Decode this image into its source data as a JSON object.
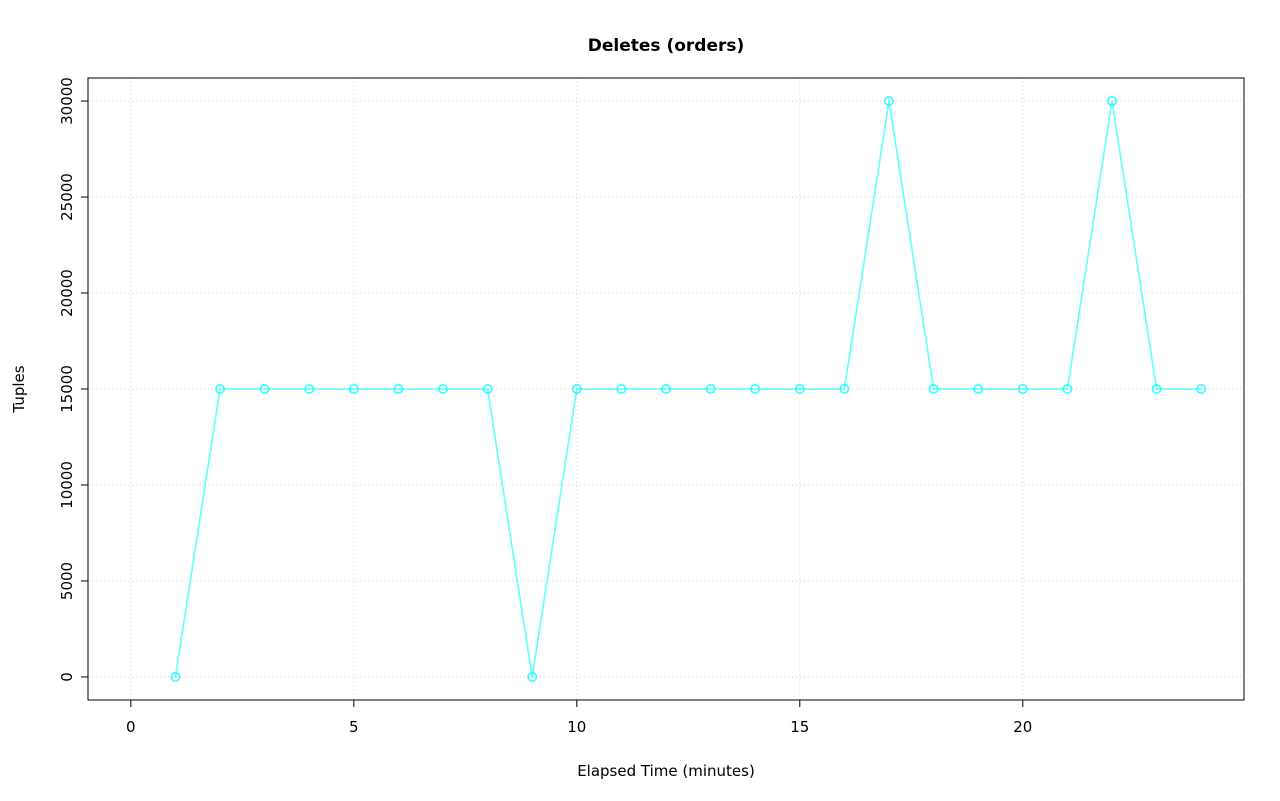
{
  "page": {
    "background": "#FFFFFF"
  },
  "chart_data": {
    "type": "line",
    "title": "Deletes (orders)",
    "xlabel": "Elapsed Time (minutes)",
    "ylabel": "Tuples",
    "x": [
      1,
      2,
      3,
      4,
      5,
      6,
      7,
      8,
      9,
      10,
      11,
      12,
      13,
      14,
      15,
      16,
      17,
      18,
      19,
      20,
      21,
      22,
      23,
      24
    ],
    "y": [
      0,
      15000,
      15000,
      15000,
      15000,
      15000,
      15000,
      15000,
      0,
      15000,
      15000,
      15000,
      15000,
      15000,
      15000,
      15000,
      30000,
      15000,
      15000,
      15000,
      15000,
      30000,
      15000,
      15000
    ],
    "xlim": [
      -0.96,
      24.96
    ],
    "ylim": [
      -1200,
      31200
    ],
    "xticks": [
      0,
      5,
      10,
      15,
      20
    ],
    "yticks": [
      0,
      5000,
      10000,
      15000,
      20000,
      25000,
      30000
    ],
    "grid": true,
    "legend_position": "none",
    "marker": "open-circle",
    "series_color": "#00FFFF",
    "grid_color": "#D3D3D3",
    "axis_color": "#000000",
    "y_tick_labels_rotated": true
  }
}
